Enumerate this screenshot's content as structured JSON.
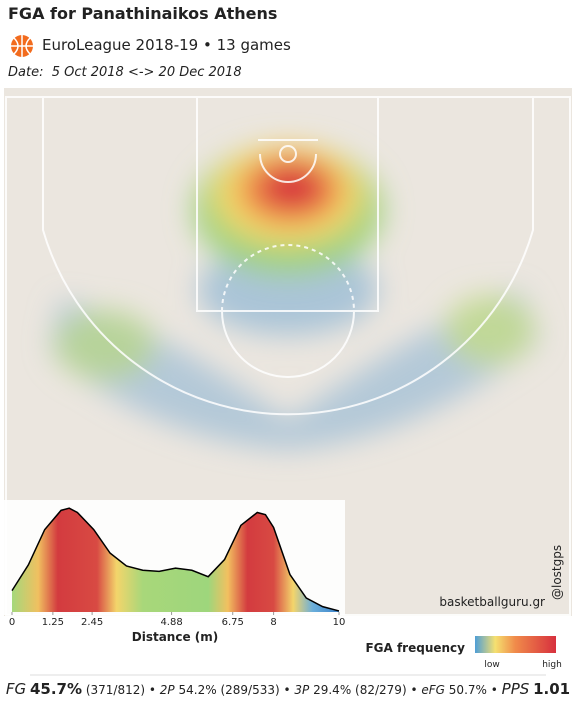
{
  "header": {
    "title": "FGA for Panathinaikos Athens",
    "subtitle": "EuroLeague 2018-19 • 13 games",
    "date_label": "Date:",
    "date": "5 Oct 2018 <-> 20 Dec 2018"
  },
  "chart_data": {
    "type": "area",
    "x": [
      0,
      0.5,
      1,
      1.5,
      1.75,
      2,
      2.5,
      3,
      3.5,
      4,
      4.5,
      5,
      5.5,
      6,
      6.5,
      7,
      7.5,
      7.75,
      8,
      8.5,
      9,
      9.5,
      10
    ],
    "values": [
      0.2,
      0.44,
      0.77,
      0.95,
      0.97,
      0.93,
      0.77,
      0.55,
      0.43,
      0.39,
      0.38,
      0.41,
      0.39,
      0.33,
      0.49,
      0.81,
      0.93,
      0.91,
      0.79,
      0.35,
      0.13,
      0.05,
      0.01
    ],
    "xlim": [
      0,
      10
    ],
    "ylim": [
      0,
      1
    ],
    "xticks": [
      0,
      1.25,
      2.45,
      4.88,
      6.75,
      8,
      10
    ],
    "xlabel": "Distance (m)",
    "color": "#000000"
  },
  "legend": {
    "title": "FGA frequency",
    "low": "low",
    "high": "high"
  },
  "watermark": "basketballguru.gr",
  "credit": "@lostgps",
  "separator": "•",
  "stats": [
    {
      "label": "FG",
      "value": "45.7%",
      "detail": "(371/812)"
    },
    {
      "label": "2P",
      "value": "54.2%",
      "detail": "(289/533)"
    },
    {
      "label": "3P",
      "value": "29.4%",
      "detail": "(82/279)"
    },
    {
      "label": "eFG",
      "value": "50.7%"
    },
    {
      "label": "PPS",
      "value": "1.01"
    }
  ]
}
